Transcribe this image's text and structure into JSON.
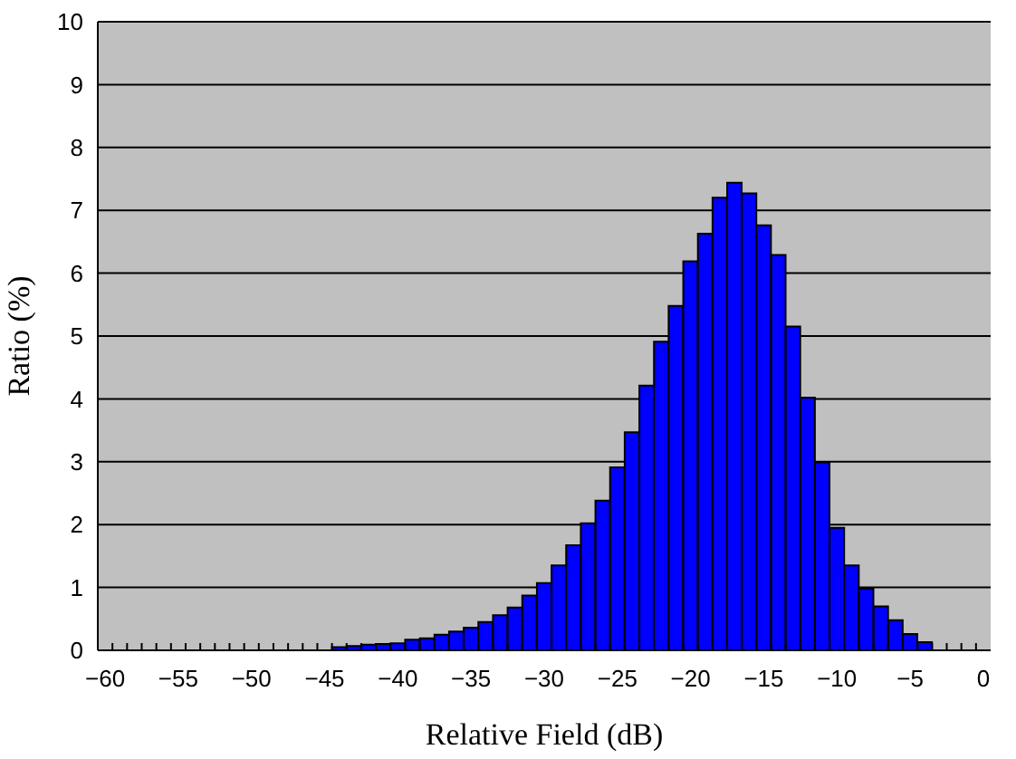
{
  "chart_data": {
    "type": "bar",
    "xlabel": "Relative Field (dB)",
    "ylabel": "Ratio (%)",
    "categories": [
      "−60",
      null,
      null,
      null,
      null,
      "−55",
      null,
      null,
      null,
      null,
      "−50",
      null,
      null,
      null,
      null,
      "−45",
      null,
      null,
      null,
      null,
      "−40",
      null,
      null,
      null,
      null,
      "−35",
      null,
      null,
      null,
      null,
      "−30",
      null,
      null,
      null,
      null,
      "−25",
      null,
      null,
      null,
      null,
      "−20",
      null,
      null,
      null,
      null,
      "−15",
      null,
      null,
      null,
      null,
      "−10",
      null,
      null,
      null,
      null,
      "−5",
      null,
      null,
      null,
      null,
      "0"
    ],
    "values": [
      0,
      0,
      0,
      0,
      0,
      0,
      0,
      0,
      0,
      0,
      0,
      0,
      0,
      0,
      0,
      0,
      0.05,
      0.07,
      0.09,
      0.1,
      0.11,
      0.17,
      0.19,
      0.25,
      0.3,
      0.36,
      0.45,
      0.56,
      0.68,
      0.87,
      1.07,
      1.35,
      1.67,
      2.02,
      2.38,
      2.91,
      3.47,
      4.21,
      4.91,
      5.48,
      6.19,
      6.63,
      7.2,
      7.44,
      7.27,
      6.76,
      6.29,
      5.15,
      4.02,
      2.99,
      1.95,
      1.35,
      0.98,
      0.7,
      0.48,
      0.26,
      0.13,
      0,
      0,
      0,
      0
    ],
    "color": "#0000ff",
    "ylim": [
      0,
      10
    ],
    "yticks": [
      0,
      1,
      2,
      3,
      4,
      5,
      6,
      7,
      8,
      9,
      10
    ],
    "grid": "y"
  }
}
